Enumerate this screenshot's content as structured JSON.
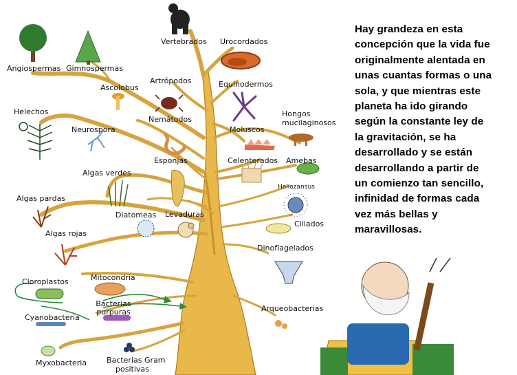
{
  "quote": {
    "lines": [
      "Hay grandeza en esta",
      "concepción que la vida fue",
      "originalmente alentada en",
      "unas cuantas formas o una",
      "sola, y que mientras este",
      "planeta ha ido girando",
      "según la constante ley de",
      "la gravitación, se ha",
      "desarrollado y se están",
      "desarrollando a partir de",
      "un comienzo tan sencillo,",
      "infinidad de formas cada",
      "vez más bellas y",
      "maravillosas."
    ]
  },
  "tree": {
    "labels": {
      "vertebrados": "Vertebrados",
      "urocordados": "Urocordados",
      "angiospermas": "Angiospermas",
      "gimnospermas": "Gimnospermas",
      "artropodos": "Artrópodos",
      "equinodermos": "Equinodermos",
      "ascolobus": "Ascolobus",
      "helechos": "Helechos",
      "hongos": "Hongos",
      "mucilaginosos": "mucilaginosos",
      "nematodos": "Nemátodos",
      "moluscos": "Moluscos",
      "neurospora": "Neurospora",
      "esponjas": "Esponjas",
      "celenterados": "Celenterados",
      "amebas": "Amebas",
      "algas_verdes": "Algas verdes",
      "heliozansus": "Heliozansus",
      "algas_pardas": "Algas pardas",
      "diatomeas": "Diatomeas",
      "levaduras": "Levaduras",
      "ciliados": "Ciliados",
      "algas_rojas": "Algas rojas",
      "dinoflagelados": "Dinoflagelados",
      "cloroplastos": "Cloroplastos",
      "mitocondria": "Mitocondria",
      "bacterias_purpuras": "Bacterias purpuras",
      "cianobacteria": "Cyanobacteria",
      "arqueobacterias": "Arqueobacterias",
      "myxobacteria": "Myxobacteria",
      "bacterias_gram": "Bacterias Gram",
      "positivas": "positivas"
    }
  },
  "colors": {
    "trunk": "#e8b84a",
    "trunk_dark": "#c9902a",
    "branch_line": "#b07a20",
    "leaf_green": "#2f7a2f",
    "bush_green": "#5aa64a"
  }
}
